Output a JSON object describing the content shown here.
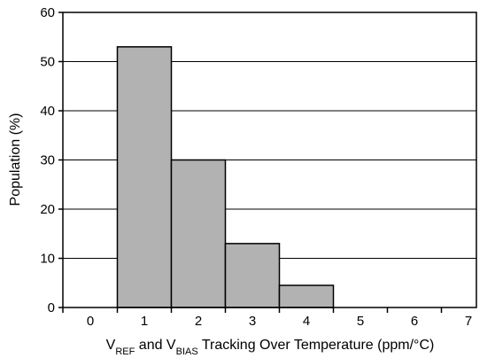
{
  "chart_data": {
    "type": "bar",
    "categories": [
      "0",
      "1",
      "2",
      "3",
      "4",
      "5",
      "6",
      "7"
    ],
    "values": [
      0,
      53,
      30,
      13,
      4.5,
      0,
      0,
      0
    ],
    "title": "",
    "xlabel": {
      "parts": [
        "V",
        "REF",
        " and V",
        "BIAS",
        " Tracking Over Temperature (ppm/°C)"
      ]
    },
    "ylabel": "Population (%)",
    "ylim": [
      0,
      60
    ],
    "yticks": [
      "0",
      "10",
      "20",
      "30",
      "40",
      "50",
      "60"
    ],
    "grid": true,
    "bar_color": "#b2b2b2",
    "bar_edge_color": "#000000"
  }
}
